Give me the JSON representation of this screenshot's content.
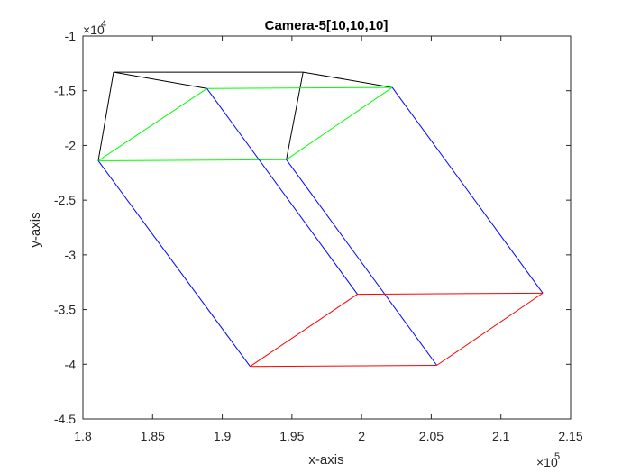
{
  "chart_data": {
    "type": "line",
    "title": "Camera-5[10,10,10]",
    "xlabel": "x-axis",
    "ylabel": "y-axis",
    "xlim": [
      180000,
      215000
    ],
    "ylim": [
      -45000,
      -10000
    ],
    "x_multiplier": {
      "base": "×10",
      "exp": "5"
    },
    "y_multiplier": {
      "base": "×10",
      "exp": "4"
    },
    "x_ticks": [
      180000,
      185000,
      190000,
      195000,
      200000,
      205000,
      210000,
      215000
    ],
    "x_tick_labels": [
      "1.8",
      "1.85",
      "1.9",
      "1.95",
      "2",
      "2.05",
      "2.1",
      "2.15"
    ],
    "y_ticks": [
      -10000,
      -15000,
      -20000,
      -25000,
      -30000,
      -35000,
      -40000,
      -45000
    ],
    "y_tick_labels": [
      "-1",
      "-1.5",
      "-2",
      "-2.5",
      "-3",
      "-3.5",
      "-4",
      "-4.5"
    ],
    "grid": false,
    "colors": {
      "black": "#000000",
      "green": "#00ff00",
      "blue": "#0000ff",
      "red": "#ff0000",
      "axis": "#262626"
    },
    "segments": [
      {
        "color": "black",
        "x": [
          182200,
          195800
        ],
        "y": [
          -13300,
          -13300
        ]
      },
      {
        "color": "black",
        "x": [
          182200,
          181100
        ],
        "y": [
          -13300,
          -21400
        ]
      },
      {
        "color": "black",
        "x": [
          182200,
          188900
        ],
        "y": [
          -13300,
          -14800
        ]
      },
      {
        "color": "black",
        "x": [
          195800,
          194600
        ],
        "y": [
          -13300,
          -21300
        ]
      },
      {
        "color": "black",
        "x": [
          195800,
          202200
        ],
        "y": [
          -13300,
          -14700
        ]
      },
      {
        "color": "green",
        "x": [
          188900,
          202200
        ],
        "y": [
          -14800,
          -14700
        ]
      },
      {
        "color": "green",
        "x": [
          181100,
          194600
        ],
        "y": [
          -21400,
          -21300
        ]
      },
      {
        "color": "green",
        "x": [
          181100,
          188900
        ],
        "y": [
          -21400,
          -14800
        ]
      },
      {
        "color": "green",
        "x": [
          194600,
          202200
        ],
        "y": [
          -21300,
          -14700
        ]
      },
      {
        "color": "blue",
        "x": [
          181100,
          192000
        ],
        "y": [
          -21400,
          -40200
        ]
      },
      {
        "color": "blue",
        "x": [
          188900,
          199700
        ],
        "y": [
          -14800,
          -33600
        ]
      },
      {
        "color": "blue",
        "x": [
          194600,
          205400
        ],
        "y": [
          -21300,
          -40100
        ]
      },
      {
        "color": "blue",
        "x": [
          202200,
          213000
        ],
        "y": [
          -14700,
          -33500
        ]
      },
      {
        "color": "red",
        "x": [
          192000,
          205400
        ],
        "y": [
          -40200,
          -40100
        ]
      },
      {
        "color": "red",
        "x": [
          199700,
          213000
        ],
        "y": [
          -33600,
          -33500
        ]
      },
      {
        "color": "red",
        "x": [
          192000,
          199700
        ],
        "y": [
          -40200,
          -33600
        ]
      },
      {
        "color": "red",
        "x": [
          205400,
          213000
        ],
        "y": [
          -40100,
          -33500
        ]
      }
    ]
  }
}
